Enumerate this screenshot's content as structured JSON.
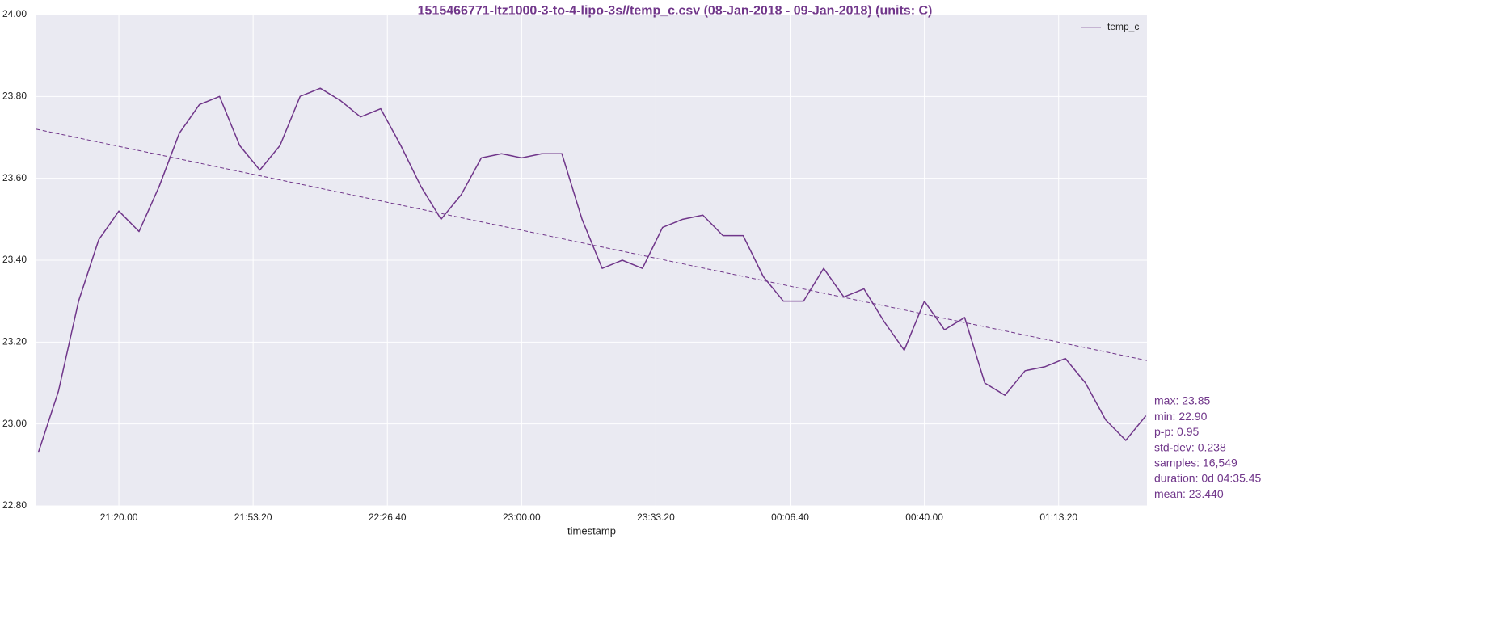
{
  "chart_data": {
    "type": "line",
    "title": "1515466771-ltz1000-3-to-4-lipo-3s//temp_c.csv (08-Jan-2018 - 09-Jan-2018) (units: C)",
    "xlabel": "timestamp",
    "x": [
      "21:00.00",
      "21:05.00",
      "21:10.00",
      "21:15.00",
      "21:20.00",
      "21:25.00",
      "21:30.00",
      "21:35.00",
      "21:40.00",
      "21:45.00",
      "21:50.00",
      "21:55.00",
      "22:00.00",
      "22:05.00",
      "22:10.00",
      "22:15.00",
      "22:20.00",
      "22:25.00",
      "22:30.00",
      "22:35.00",
      "22:40.00",
      "22:45.00",
      "22:50.00",
      "22:55.00",
      "23:00.00",
      "23:05.00",
      "23:10.00",
      "23:15.00",
      "23:20.00",
      "23:25.00",
      "23:30.00",
      "23:35.00",
      "23:40.00",
      "23:45.00",
      "23:50.00",
      "23:55.00",
      "00:00.00",
      "00:05.00",
      "00:10.00",
      "00:15.00",
      "00:20.00",
      "00:25.00",
      "00:30.00",
      "00:35.00",
      "00:40.00",
      "00:45.00",
      "00:50.00",
      "00:55.00",
      "01:00.00",
      "01:05.00",
      "01:10.00",
      "01:15.00",
      "01:20.00",
      "01:25.00",
      "01:30.00",
      "01:35.00"
    ],
    "series": [
      {
        "name": "temp_c",
        "color": "#70368a",
        "values": [
          22.93,
          23.08,
          23.3,
          23.45,
          23.52,
          23.47,
          23.58,
          23.71,
          23.78,
          23.8,
          23.68,
          23.62,
          23.68,
          23.8,
          23.82,
          23.79,
          23.75,
          23.77,
          23.68,
          23.58,
          23.5,
          23.56,
          23.65,
          23.66,
          23.65,
          23.66,
          23.66,
          23.5,
          23.38,
          23.4,
          23.38,
          23.48,
          23.5,
          23.51,
          23.46,
          23.46,
          23.36,
          23.3,
          23.3,
          23.38,
          23.31,
          23.33,
          23.25,
          23.18,
          23.3,
          23.23,
          23.26,
          23.1,
          23.07,
          23.13,
          23.14,
          23.16,
          23.1,
          23.01,
          22.96,
          23.02
        ]
      }
    ],
    "trendline": {
      "color": "#70368a",
      "values": [
        23.72,
        23.155
      ]
    },
    "xlim": [
      "20:59.31",
      "01:35.16"
    ],
    "xticks": [
      "21:20.00",
      "21:53.20",
      "22:26.40",
      "23:00.00",
      "23:33.20",
      "00:06.40",
      "00:40.00",
      "01:13.20"
    ],
    "ylim": [
      22.8,
      24
    ],
    "yticks": [
      {
        "value": 22.8,
        "label": "22.80"
      },
      {
        "value": 23,
        "label": "23.00"
      },
      {
        "value": 23.2,
        "label": "23.20"
      },
      {
        "value": 23.4,
        "label": "23.40"
      },
      {
        "value": 23.6,
        "label": "23.60"
      },
      {
        "value": 23.8,
        "label": "23.80"
      },
      {
        "value": 24,
        "label": "24.00"
      }
    ],
    "grid": true,
    "legend": "upper right",
    "background": "#eaeaf2",
    "annotations": [
      "max: 23.85",
      "min: 22.90",
      "p-p: 0.95",
      "std-dev: 0.238",
      "samples: 16,549",
      "duration: 0d 04:35.45",
      "mean: 23.440"
    ]
  }
}
